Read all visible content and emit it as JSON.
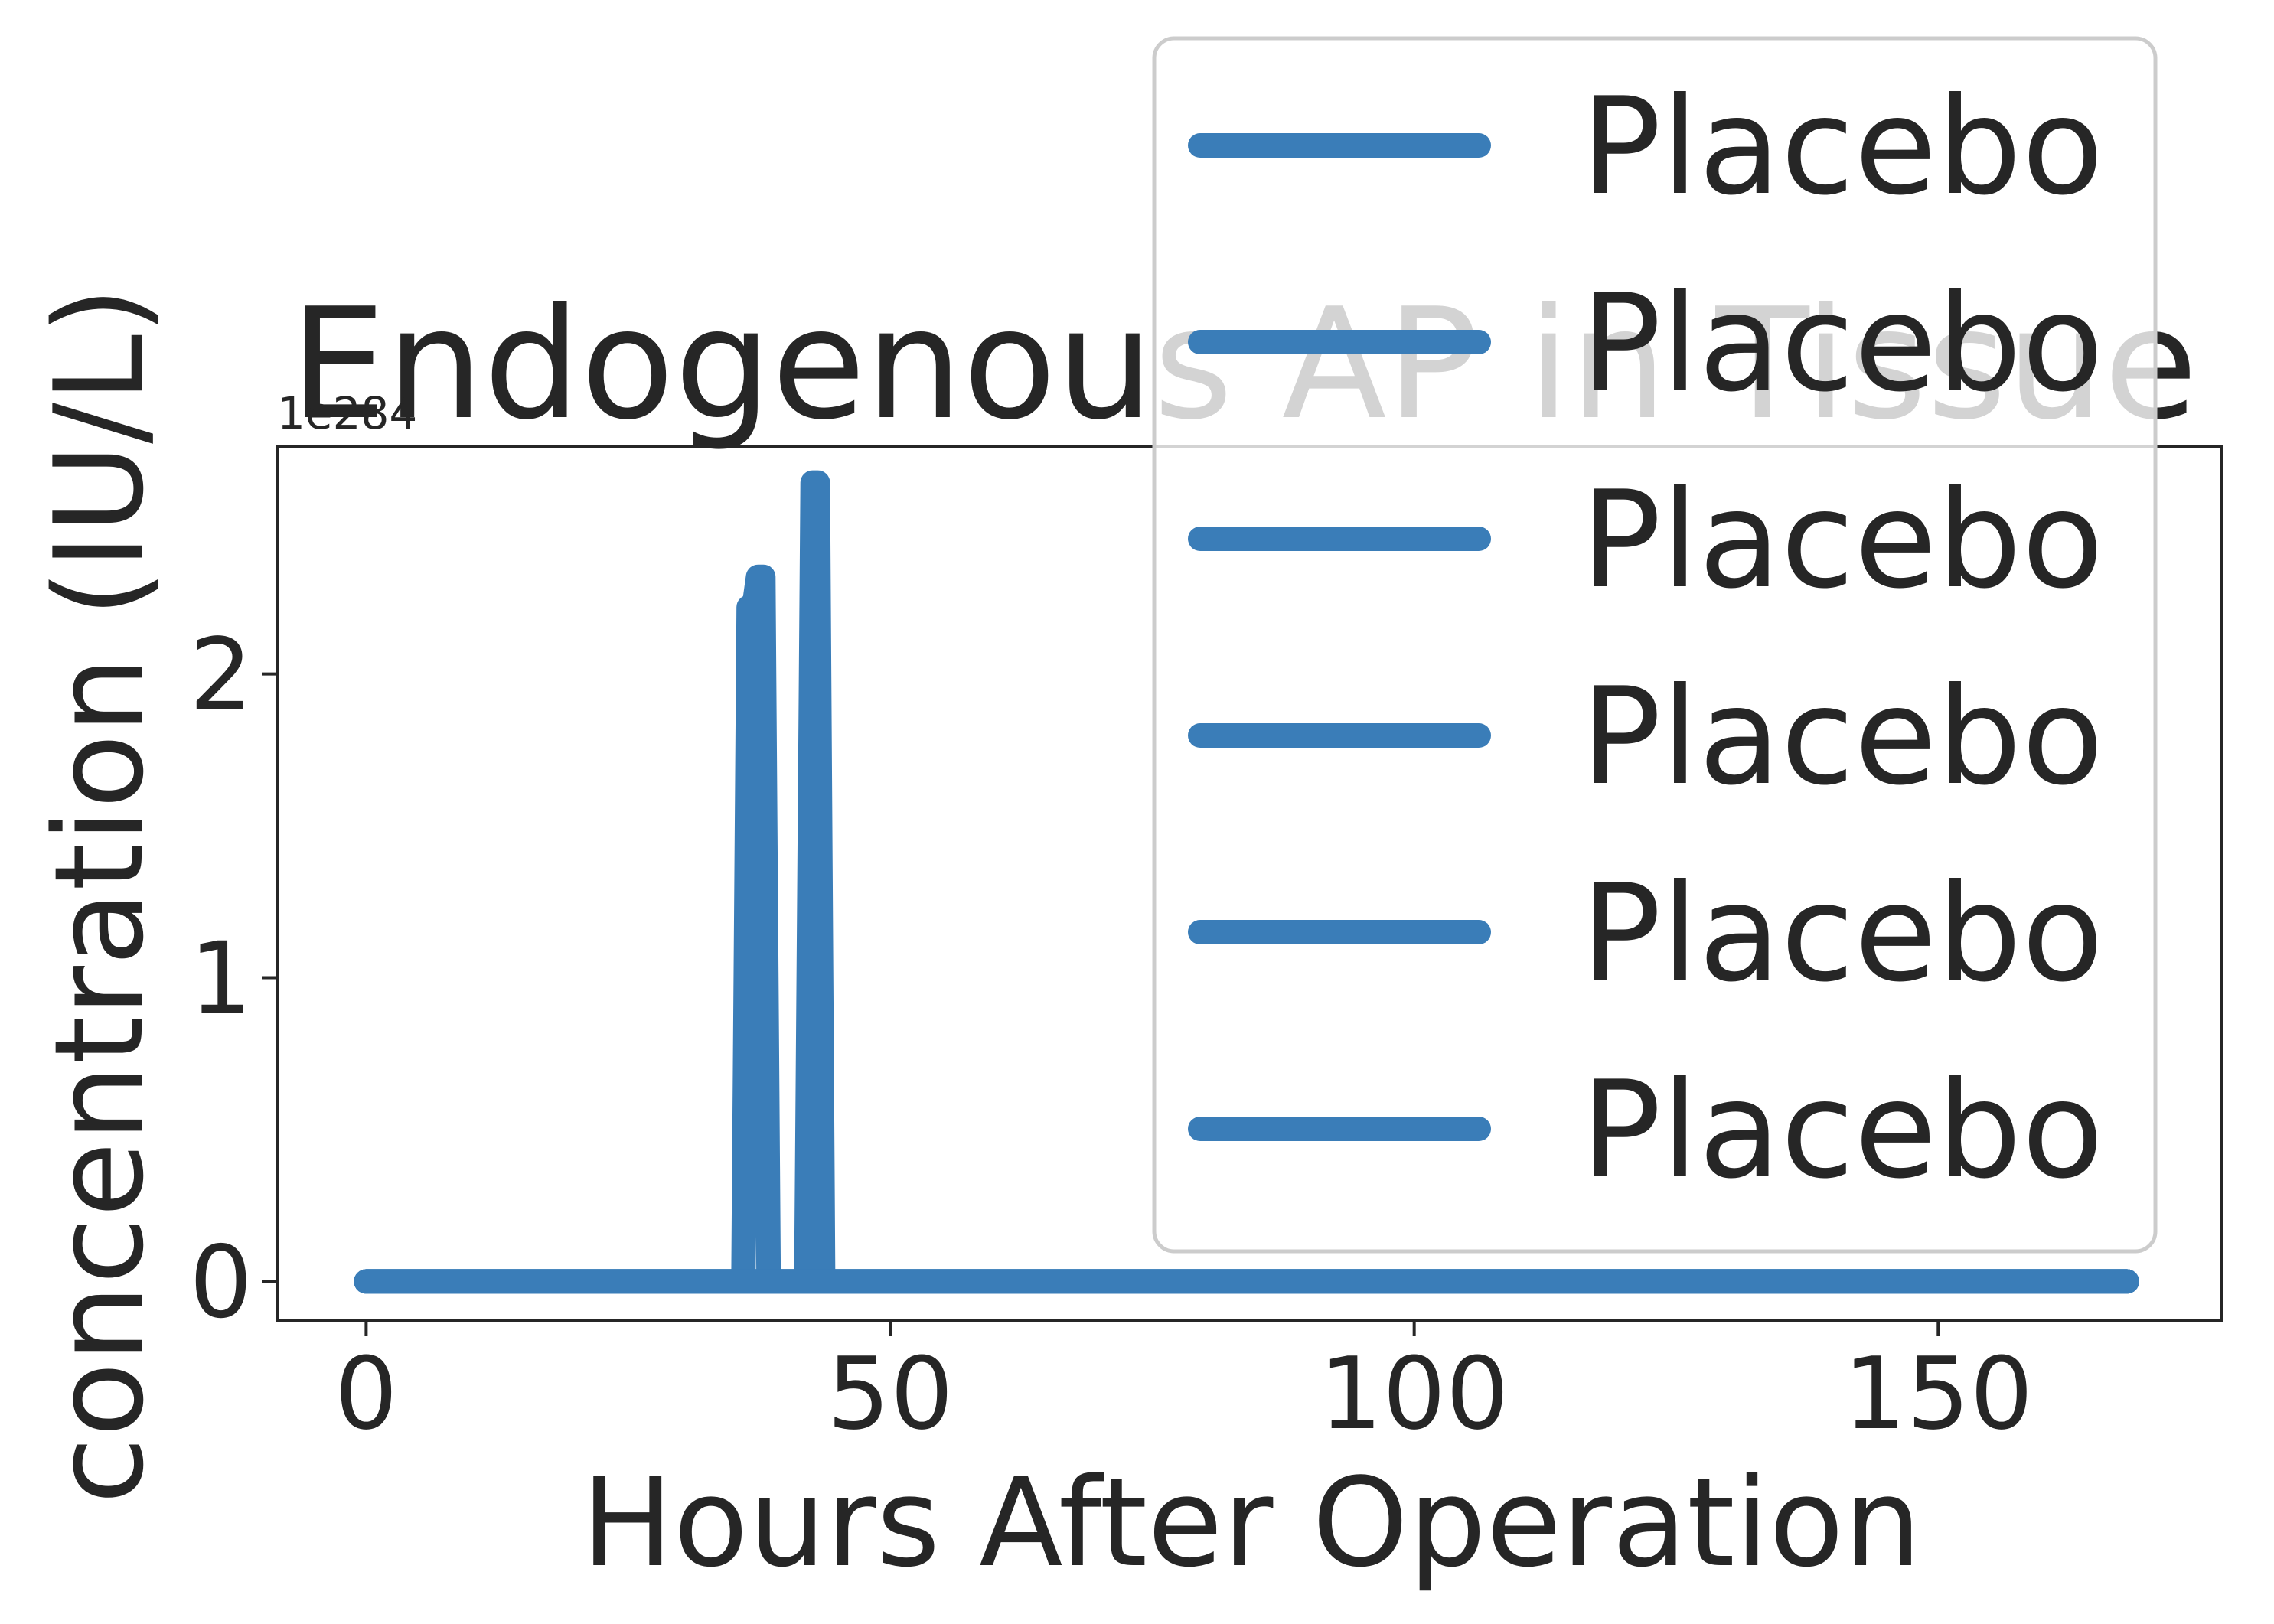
{
  "chart_data": {
    "type": "line",
    "title": "Endogenous AP in Tissue",
    "xlabel": "Hours After Operation",
    "ylabel": "concentration (IU/L)",
    "offset_label": "1e284",
    "xlim": [
      -8.5,
      177
    ],
    "ylim": [
      -0.13,
      2.75
    ],
    "y_scale_factor": "1e284",
    "x_ticks": [
      0,
      50,
      100,
      150
    ],
    "x_tick_labels": [
      "0",
      "50",
      "100",
      "150"
    ],
    "y_ticks": [
      0,
      1,
      2
    ],
    "y_tick_labels": [
      "0",
      "1",
      "2"
    ],
    "grid": false,
    "legend_position": "upper right",
    "series_color": "#3a7db8",
    "series": [
      {
        "name": "Placebo",
        "x": [
          0,
          36,
          36.5,
          37,
          37.4,
          37.9,
          38.4,
          42,
          42.6,
          43.1,
          43.6,
          168
        ],
        "y": [
          0,
          0,
          2.22,
          2.22,
          2.32,
          2.32,
          0,
          0,
          2.63,
          2.63,
          0,
          0
        ]
      },
      {
        "name": "Placebo",
        "x": [
          0,
          168
        ],
        "y": [
          0,
          0
        ]
      },
      {
        "name": "Placebo",
        "x": [
          0,
          168
        ],
        "y": [
          0,
          0
        ]
      },
      {
        "name": "Placebo",
        "x": [
          0,
          168
        ],
        "y": [
          0,
          0
        ]
      },
      {
        "name": "Placebo",
        "x": [
          0,
          168
        ],
        "y": [
          0,
          0
        ]
      },
      {
        "name": "Placebo",
        "x": [
          0,
          168
        ],
        "y": [
          0,
          0
        ]
      }
    ]
  }
}
